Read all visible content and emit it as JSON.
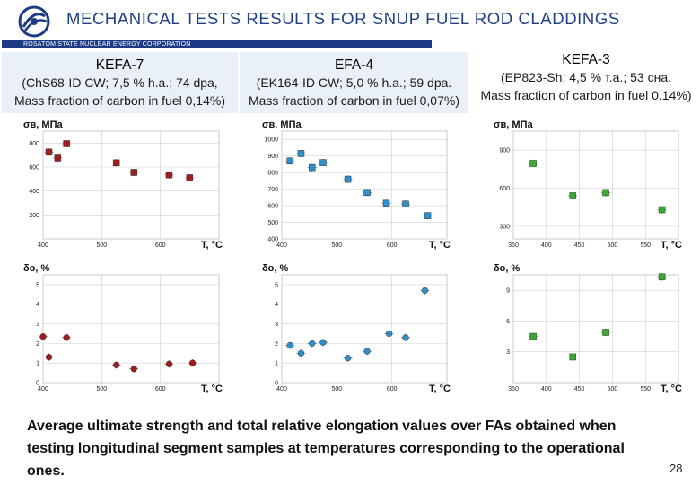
{
  "header": {
    "title": "MECHANICAL  TESTS RESULTS  FOR  SNUP  FUEL  ROD  CLADDINGS",
    "corporation": "ROSATOM STATE NUCLEAR ENERGY CORPORATION"
  },
  "assemblies": [
    {
      "name": "KEFA-7",
      "line1": "(ChS68-ID CW; 7,5 % h.a.; 74 dpa,",
      "line2": "Mass fraction of carbon in fuel 0,14%)"
    },
    {
      "name": "EFA-4",
      "line1": "(EK164-ID CW; 5,0 % h.a.; 59 dpa.",
      "line2": "Mass fraction of carbon in fuel 0,07%)"
    },
    {
      "name": "KEFA-3",
      "line1": "(EP823-Sh; 4,5 % т.а.; 53 сна.",
      "line2": "Mass fraction of carbon in fuel 0,14%)"
    }
  ],
  "footer": {
    "text": "Average ultimate strength and total relative elongation values over FAs obtained when testing longitudinal segment samples at temperatures corresponding to the operational ones.",
    "page": "28"
  },
  "colors": {
    "kefa7": "#a01d1d",
    "efa4": "#2f8fca",
    "kefa3": "#3fa535",
    "brand": "#1d3b84"
  },
  "chart_data": [
    {
      "id": "strength-kefa7",
      "type": "scatter",
      "ylabel": "σв, МПа",
      "xlabel": "T, °C",
      "xlim": [
        400,
        700
      ],
      "ylim": [
        0,
        900
      ],
      "xticks": [
        "400",
        "500",
        "600"
      ],
      "yticks": [
        "200",
        "400",
        "600",
        "800"
      ],
      "x": [
        410,
        425,
        440,
        525,
        555,
        615,
        650
      ],
      "y": [
        725,
        675,
        795,
        635,
        555,
        535,
        510
      ]
    },
    {
      "id": "strength-efa4",
      "type": "scatter",
      "ylabel": "σв, МПа",
      "xlabel": "T, °C",
      "xlim": [
        400,
        700
      ],
      "ylim": [
        400,
        1050
      ],
      "xticks": [
        "400",
        "500",
        "600"
      ],
      "yticks": [
        "400",
        "500",
        "600",
        "700",
        "800",
        "900",
        "1000"
      ],
      "x": [
        415,
        435,
        455,
        475,
        520,
        555,
        590,
        625,
        665
      ],
      "y": [
        870,
        915,
        830,
        860,
        760,
        680,
        615,
        610,
        540
      ]
    },
    {
      "id": "strength-kefa3",
      "type": "scatter",
      "ylabel": "σв, МПа",
      "xlabel": "T, °C",
      "xlim": [
        350,
        600
      ],
      "ylim": [
        200,
        1050
      ],
      "xticks": [
        "350",
        "400",
        "450",
        "500",
        "550"
      ],
      "yticks": [
        "300",
        "600",
        "900"
      ],
      "x": [
        380,
        440,
        490,
        575
      ],
      "y": [
        795,
        540,
        565,
        430
      ]
    },
    {
      "id": "elongation-kefa7",
      "type": "scatter",
      "ylabel": "δo, %",
      "xlabel": "T, °C",
      "xlim": [
        400,
        700
      ],
      "ylim": [
        0,
        5.5
      ],
      "xticks": [
        "400",
        "500",
        "600"
      ],
      "yticks": [
        "0",
        "1",
        "2",
        "3",
        "4",
        "5"
      ],
      "x": [
        400,
        410,
        440,
        525,
        555,
        615,
        655
      ],
      "y": [
        2.35,
        1.3,
        2.3,
        0.9,
        0.7,
        0.95,
        1.0
      ]
    },
    {
      "id": "elongation-efa4",
      "type": "scatter",
      "ylabel": "δo, %",
      "xlabel": "T, °C",
      "xlim": [
        400,
        700
      ],
      "ylim": [
        0,
        5.5
      ],
      "xticks": [
        "400",
        "500",
        "600"
      ],
      "yticks": [
        "0",
        "1",
        "2",
        "3",
        "4",
        "5"
      ],
      "x": [
        415,
        435,
        455,
        475,
        520,
        555,
        595,
        625,
        660
      ],
      "y": [
        1.9,
        1.5,
        2.0,
        2.05,
        1.25,
        1.6,
        2.5,
        2.3,
        4.7
      ]
    },
    {
      "id": "elongation-kefa3",
      "type": "scatter",
      "ylabel": "δo, %",
      "xlabel": "T, °C",
      "xlim": [
        350,
        600
      ],
      "ylim": [
        0,
        10.5
      ],
      "xticks": [
        "350",
        "400",
        "450",
        "500",
        "550"
      ],
      "yticks": [
        "3",
        "6",
        "9"
      ],
      "x": [
        380,
        440,
        490,
        575
      ],
      "y": [
        4.5,
        2.5,
        4.9,
        10.3
      ]
    }
  ]
}
